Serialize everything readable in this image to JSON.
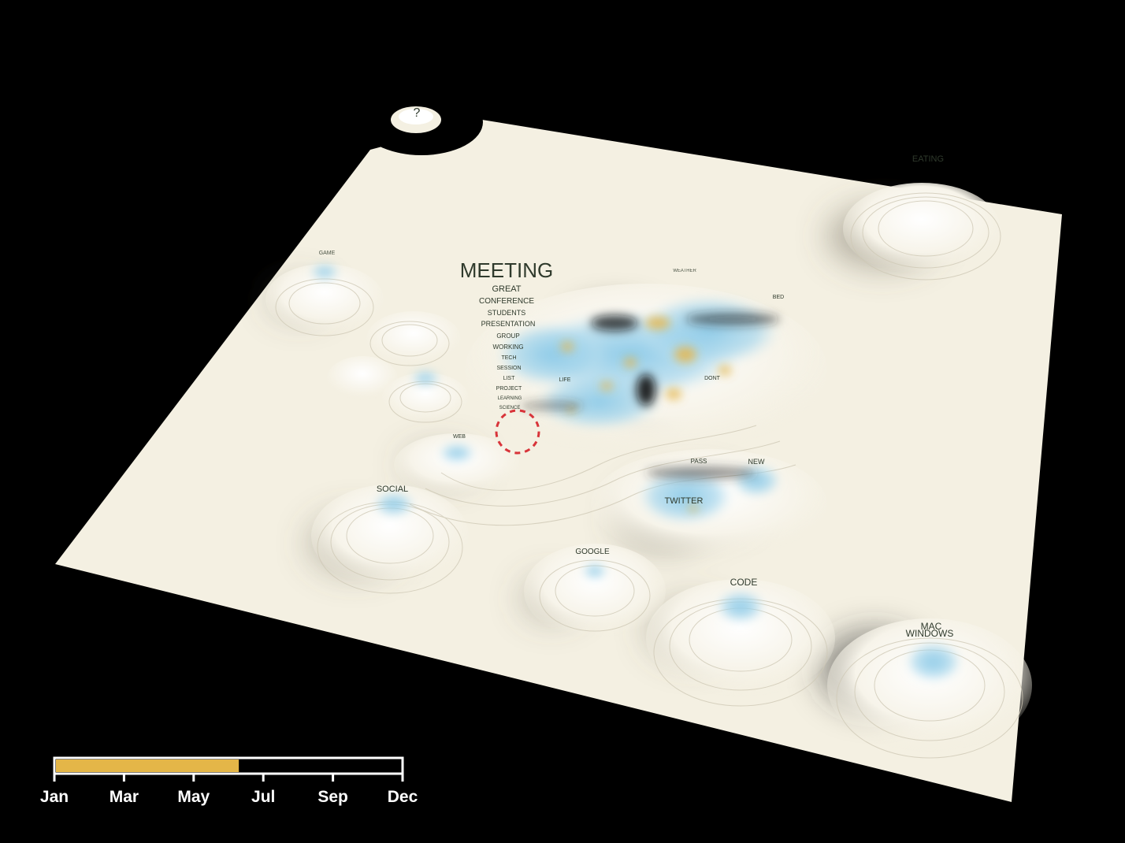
{
  "colors": {
    "background": "#000000",
    "terrain": "#f4f0e2",
    "water": "#7fc4e6",
    "highlight": "#e7b64a",
    "label": "#2f3a2c",
    "timeline_fill": "#e4b648",
    "selection": "#d8343a"
  },
  "orphan_peak": {
    "label": "?"
  },
  "topics": {
    "meeting": "MEETING",
    "meeting_related": [
      "GREAT",
      "CONFERENCE",
      "STUDENTS",
      "PRESENTATION",
      "GROUP",
      "WORKING",
      "TECH",
      "SESSION",
      "LIST",
      "PROJECT",
      "LEARNING",
      "SCIENCE"
    ],
    "eating": "EATING",
    "game": "GAME",
    "social": "SOCIAL",
    "google": "GOOGLE",
    "twitter": "TWITTER",
    "code": "CODE",
    "mac": "MAC",
    "windows": "WINDOWS",
    "new": "NEW",
    "weather": "WEATHER",
    "bed": "BED",
    "life": "LIFE",
    "dont": "DONT",
    "web": "WEB",
    "pass": "PASS"
  },
  "timeline": {
    "months": [
      "Jan",
      "Mar",
      "May",
      "Jul",
      "Sep",
      "Dec"
    ],
    "progress": 0.53
  }
}
